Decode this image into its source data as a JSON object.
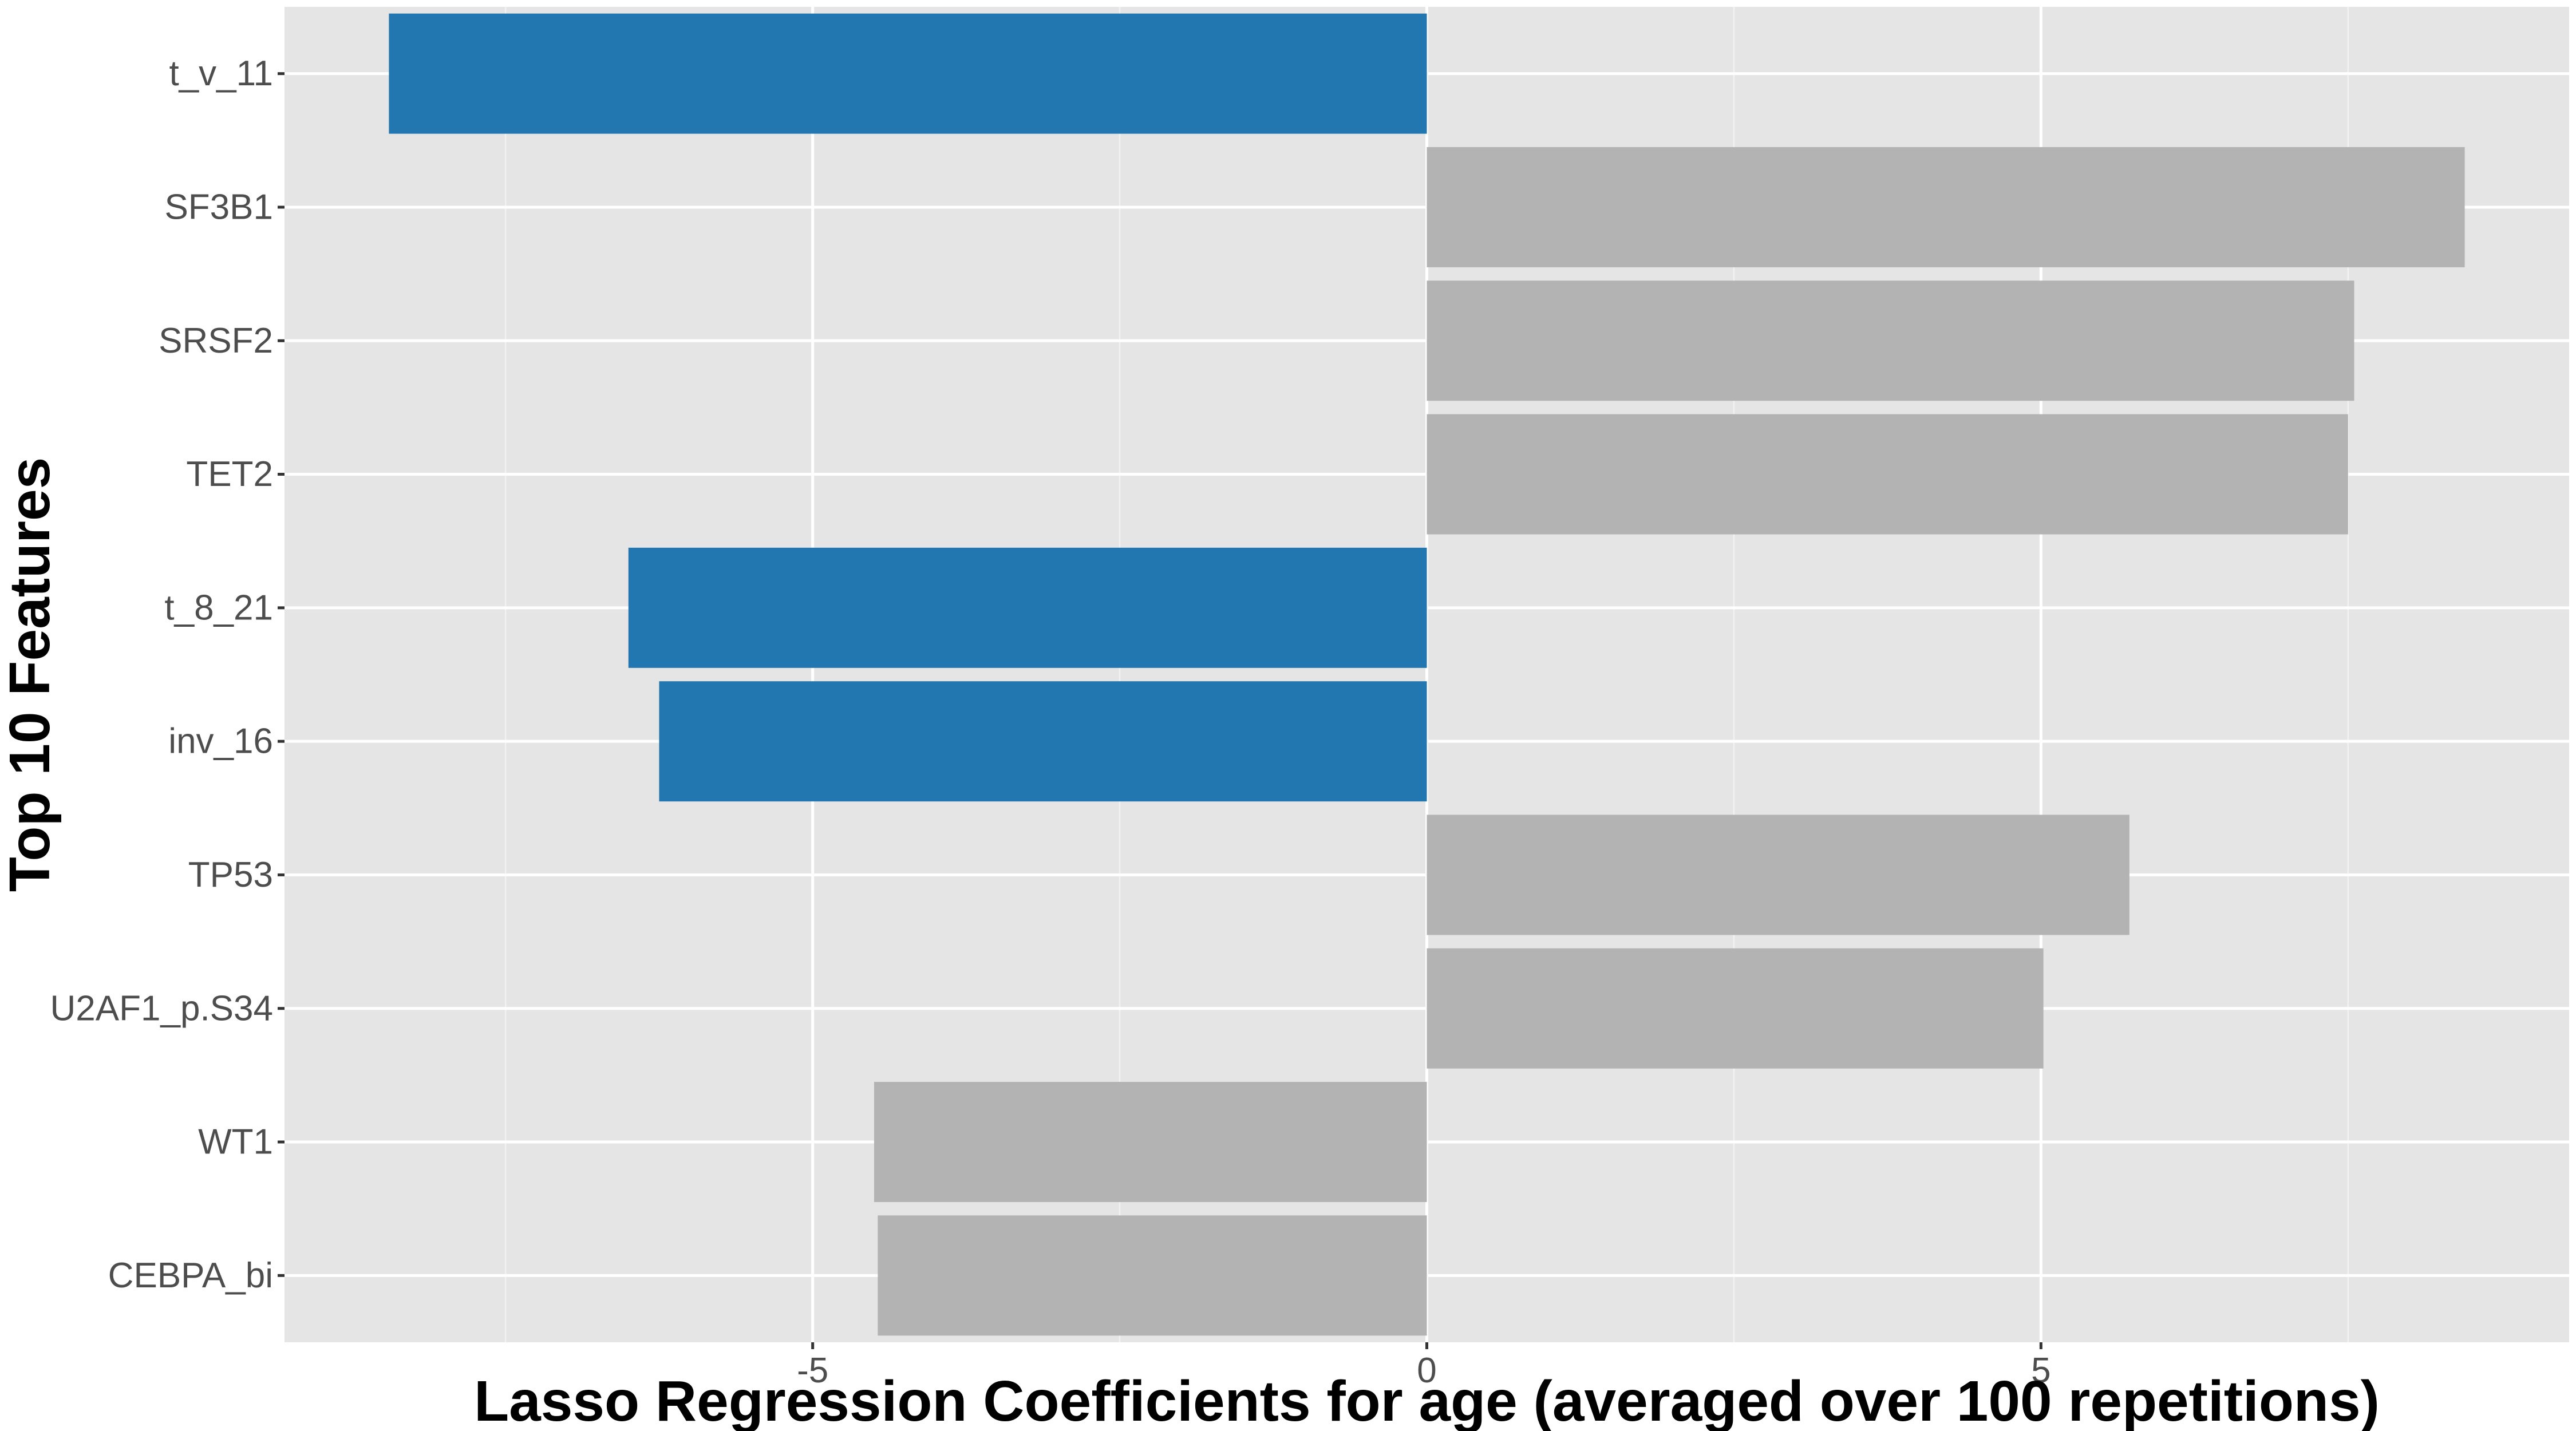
{
  "chart_data": {
    "type": "bar",
    "orientation": "horizontal",
    "title": "",
    "xlabel": "Lasso Regression Coefficients for age (averaged over 100 repetitions)",
    "ylabel": "Top 10 Features",
    "xlim": [
      -9.3,
      9.3
    ],
    "xticks": [
      -5,
      0,
      5
    ],
    "xtick_labels": [
      "-5",
      "0",
      "5"
    ],
    "grid": true,
    "legend": "none",
    "categories": [
      "t_v_11",
      "SF3B1",
      "SRSF2",
      "TET2",
      "t_8_21",
      "inv_16",
      "TP53",
      "U2AF1_p.S34",
      "WT1",
      "CEBPA_bi"
    ],
    "values": [
      -8.45,
      8.45,
      7.55,
      7.5,
      -6.5,
      -6.25,
      5.72,
      5.02,
      -4.5,
      -4.47
    ],
    "highlighted": [
      true,
      false,
      false,
      false,
      true,
      true,
      false,
      false,
      false,
      false
    ],
    "colors": {
      "highlight": "#2277b0",
      "default": "#b3b3b3",
      "panel_background": "#e5e5e5",
      "grid_major": "#ffffff",
      "grid_minor": "#f2f2f2",
      "tick_text": "#4d4d4d",
      "axis_title": "#000000"
    }
  }
}
